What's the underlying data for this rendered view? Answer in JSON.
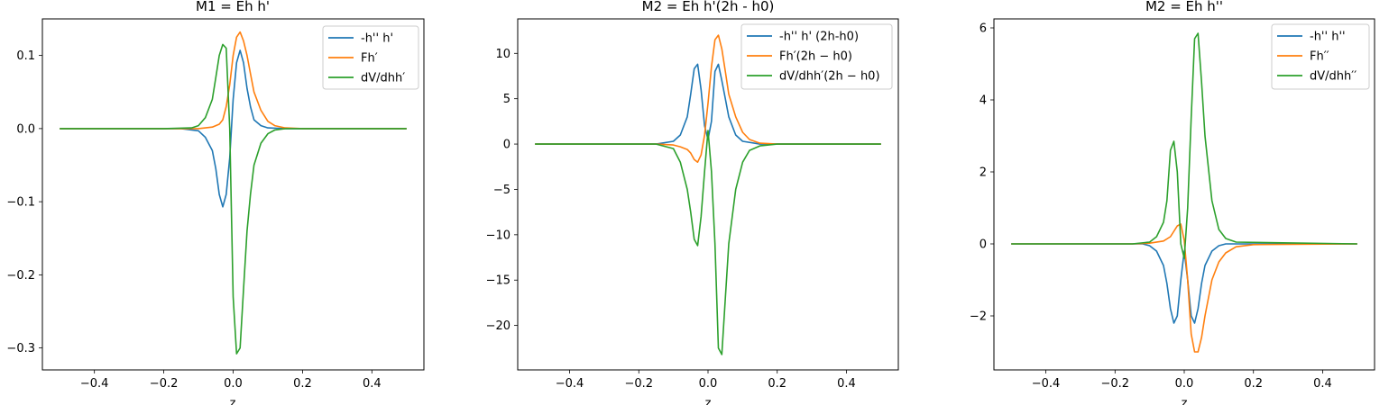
{
  "chart_data": [
    {
      "type": "line",
      "title": "M1 = Eh h'",
      "xlabel": "z",
      "ylabel": "",
      "xlim": [
        -0.55,
        0.55
      ],
      "ylim": [
        -0.33,
        0.15
      ],
      "xticks": [
        -0.4,
        -0.2,
        0.0,
        0.2,
        0.4
      ],
      "xtick_labels": [
        "−0.4",
        "−0.2",
        "0.0",
        "0.2",
        "0.4"
      ],
      "yticks": [
        0.1,
        0.0,
        -0.1,
        -0.2,
        -0.3
      ],
      "ytick_labels": [
        "0.1",
        "0.0",
        "−0.1",
        "−0.2",
        "−0.3"
      ],
      "legend_position": "top-right",
      "grid": false,
      "series": [
        {
          "name": "-h'' h'",
          "color": "#1f77b4",
          "x": [
            -0.5,
            -0.2,
            -0.15,
            -0.1,
            -0.08,
            -0.06,
            -0.05,
            -0.04,
            -0.03,
            -0.02,
            -0.01,
            0.0,
            0.01,
            0.02,
            0.03,
            0.04,
            0.05,
            0.06,
            0.08,
            0.1,
            0.15,
            0.2,
            0.5
          ],
          "y": [
            0.0,
            0.0,
            0.0,
            -0.003,
            -0.012,
            -0.03,
            -0.055,
            -0.09,
            -0.107,
            -0.09,
            -0.04,
            0.04,
            0.09,
            0.107,
            0.09,
            0.055,
            0.03,
            0.012,
            0.004,
            0.001,
            0.0,
            0.0,
            0.0
          ]
        },
        {
          "name": "Fh′",
          "color": "#ff7f0e",
          "x": [
            -0.5,
            -0.2,
            -0.1,
            -0.08,
            -0.06,
            -0.04,
            -0.03,
            -0.02,
            -0.01,
            0.0,
            0.01,
            0.02,
            0.03,
            0.04,
            0.05,
            0.06,
            0.08,
            0.1,
            0.12,
            0.15,
            0.2,
            0.5
          ],
          "y": [
            0.0,
            0.0,
            0.0,
            0.001,
            0.002,
            0.006,
            0.012,
            0.03,
            0.06,
            0.1,
            0.125,
            0.132,
            0.12,
            0.1,
            0.075,
            0.05,
            0.025,
            0.01,
            0.004,
            0.001,
            0.0,
            0.0
          ]
        },
        {
          "name": "dV/dhh′",
          "color": "#2ca02c",
          "x": [
            -0.5,
            -0.2,
            -0.12,
            -0.1,
            -0.08,
            -0.06,
            -0.05,
            -0.04,
            -0.03,
            -0.02,
            -0.01,
            0.0,
            0.01,
            0.02,
            0.03,
            0.04,
            0.05,
            0.06,
            0.08,
            0.1,
            0.12,
            0.15,
            0.2,
            0.5
          ],
          "y": [
            0.0,
            0.0,
            0.001,
            0.004,
            0.015,
            0.04,
            0.07,
            0.1,
            0.115,
            0.11,
            0.0,
            -0.23,
            -0.308,
            -0.3,
            -0.22,
            -0.14,
            -0.09,
            -0.05,
            -0.02,
            -0.007,
            -0.002,
            0.0,
            0.0,
            0.0
          ]
        }
      ]
    },
    {
      "type": "line",
      "title": "M2 = Eh h'(2h - h0)",
      "xlabel": "z",
      "ylabel": "",
      "xlim": [
        -0.55,
        0.55
      ],
      "ylim": [
        -24.9,
        13.8
      ],
      "xticks": [
        -0.4,
        -0.2,
        0.0,
        0.2,
        0.4
      ],
      "xtick_labels": [
        "−0.4",
        "−0.2",
        "0.0",
        "0.2",
        "0.4"
      ],
      "yticks": [
        10,
        5,
        0,
        -5,
        -10,
        -15,
        -20
      ],
      "ytick_labels": [
        "10",
        "5",
        "0",
        "−5",
        "−10",
        "−15",
        "−20"
      ],
      "legend_position": "top-right",
      "grid": false,
      "series": [
        {
          "name": "-h'' h' (2h-h0)",
          "color": "#1f77b4",
          "x": [
            -0.5,
            -0.15,
            -0.1,
            -0.08,
            -0.06,
            -0.05,
            -0.04,
            -0.03,
            -0.02,
            -0.01,
            0.0,
            0.01,
            0.02,
            0.03,
            0.04,
            0.05,
            0.06,
            0.08,
            0.1,
            0.15,
            0.5
          ],
          "y": [
            0.0,
            0.0,
            0.3,
            1.0,
            3.0,
            5.5,
            8.3,
            8.8,
            6.0,
            2.0,
            0.5,
            2.5,
            8.0,
            8.8,
            7.0,
            5.0,
            3.0,
            1.0,
            0.3,
            0.0,
            0.0
          ]
        },
        {
          "name": "Fh′(2h − h0)",
          "color": "#ff7f0e",
          "x": [
            -0.5,
            -0.15,
            -0.1,
            -0.08,
            -0.06,
            -0.05,
            -0.04,
            -0.03,
            -0.02,
            -0.01,
            0.0,
            0.01,
            0.02,
            0.03,
            0.04,
            0.05,
            0.06,
            0.08,
            0.1,
            0.12,
            0.15,
            0.2,
            0.5
          ],
          "y": [
            0.0,
            0.0,
            -0.1,
            -0.3,
            -0.6,
            -1.0,
            -1.7,
            -2.0,
            -1.2,
            1.0,
            4.5,
            8.5,
            11.5,
            12.0,
            10.5,
            8.0,
            5.5,
            3.0,
            1.3,
            0.5,
            0.1,
            0.0,
            0.0
          ]
        },
        {
          "name": "dV/dhh′(2h − h0)",
          "color": "#2ca02c",
          "x": [
            -0.5,
            -0.15,
            -0.1,
            -0.08,
            -0.06,
            -0.05,
            -0.04,
            -0.03,
            -0.02,
            -0.01,
            0.0,
            0.01,
            0.02,
            0.03,
            0.04,
            0.05,
            0.06,
            0.08,
            0.1,
            0.12,
            0.15,
            0.2,
            0.5
          ],
          "y": [
            0.0,
            0.0,
            -0.5,
            -2.0,
            -5.0,
            -7.5,
            -10.5,
            -11.2,
            -8.0,
            -3.0,
            1.5,
            -3.0,
            -11.0,
            -22.5,
            -23.2,
            -17.0,
            -11.0,
            -5.0,
            -2.0,
            -0.7,
            -0.2,
            0.0,
            0.0
          ]
        }
      ]
    },
    {
      "type": "line",
      "title": "M2 = Eh h''",
      "xlabel": "z",
      "ylabel": "",
      "xlim": [
        -0.55,
        0.55
      ],
      "ylim": [
        -3.5,
        6.25
      ],
      "xticks": [
        -0.4,
        -0.2,
        0.0,
        0.2,
        0.4
      ],
      "xtick_labels": [
        "−0.4",
        "−0.2",
        "0.0",
        "0.2",
        "0.4"
      ],
      "yticks": [
        6,
        4,
        2,
        0,
        -2
      ],
      "ytick_labels": [
        "6",
        "4",
        "2",
        "0",
        "−2"
      ],
      "legend_position": "top-right",
      "grid": false,
      "series": [
        {
          "name": "-h'' h''",
          "color": "#1f77b4",
          "x": [
            -0.5,
            -0.12,
            -0.1,
            -0.08,
            -0.06,
            -0.05,
            -0.04,
            -0.03,
            -0.02,
            -0.01,
            0.0,
            0.01,
            0.02,
            0.03,
            0.04,
            0.05,
            0.06,
            0.08,
            0.1,
            0.12,
            0.15,
            0.5
          ],
          "y": [
            0.0,
            0.0,
            -0.05,
            -0.2,
            -0.6,
            -1.1,
            -1.8,
            -2.2,
            -2.0,
            -1.0,
            -0.2,
            -1.0,
            -2.0,
            -2.2,
            -1.8,
            -1.1,
            -0.6,
            -0.2,
            -0.05,
            0.0,
            0.0,
            0.0
          ]
        },
        {
          "name": "Fh′′",
          "color": "#ff7f0e",
          "x": [
            -0.5,
            -0.15,
            -0.1,
            -0.06,
            -0.04,
            -0.03,
            -0.02,
            -0.01,
            0.0,
            0.01,
            0.02,
            0.03,
            0.04,
            0.05,
            0.06,
            0.08,
            0.1,
            0.12,
            0.15,
            0.2,
            0.5
          ],
          "y": [
            0.0,
            0.0,
            0.02,
            0.08,
            0.2,
            0.35,
            0.5,
            0.55,
            0.1,
            -1.0,
            -2.5,
            -3.0,
            -3.0,
            -2.6,
            -2.0,
            -1.0,
            -0.5,
            -0.25,
            -0.08,
            -0.02,
            0.0
          ]
        },
        {
          "name": "dV/dhh′′",
          "color": "#2ca02c",
          "x": [
            -0.5,
            -0.15,
            -0.1,
            -0.08,
            -0.06,
            -0.05,
            -0.04,
            -0.03,
            -0.02,
            -0.01,
            0.0,
            0.01,
            0.02,
            0.03,
            0.04,
            0.05,
            0.06,
            0.08,
            0.1,
            0.12,
            0.15,
            0.5
          ],
          "y": [
            0.0,
            0.0,
            0.05,
            0.2,
            0.6,
            1.2,
            2.6,
            2.85,
            2.0,
            0.0,
            -0.4,
            1.0,
            3.5,
            5.7,
            5.85,
            4.5,
            3.0,
            1.2,
            0.4,
            0.15,
            0.05,
            0.0
          ]
        }
      ]
    }
  ]
}
